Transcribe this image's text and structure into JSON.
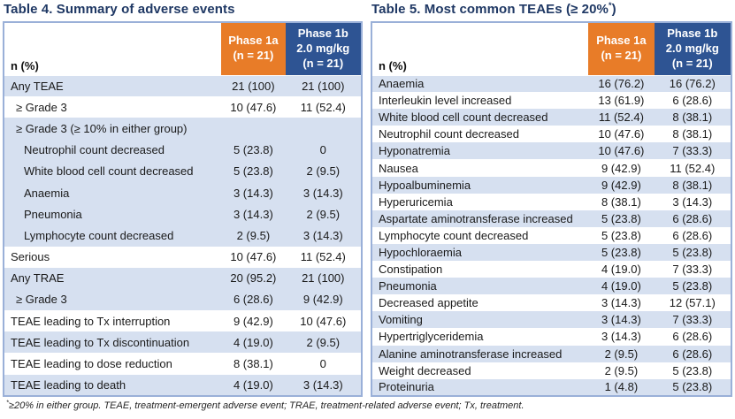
{
  "colors": {
    "accent_orange": "#E87C28",
    "accent_blue": "#2E5493",
    "row_blue": "#D6E0F0",
    "title_navy": "#1F3864",
    "table_border": "#9AB0D8"
  },
  "table4": {
    "title": "Table 4. Summary of adverse events",
    "row_header": "n (%)",
    "columns": [
      {
        "lines": [
          "Phase 1a",
          "(n = 21)"
        ]
      },
      {
        "lines": [
          "Phase 1b",
          "2.0 mg/kg",
          "(n = 21)"
        ]
      }
    ],
    "rows": [
      {
        "label": "Any TEAE",
        "v1": "21 (100)",
        "v2": "21 (100)",
        "bg": "blue",
        "indent": 0
      },
      {
        "label": "≥ Grade 3",
        "v1": "10 (47.6)",
        "v2": "11 (52.4)",
        "bg": "white",
        "indent": 1
      },
      {
        "label": "≥ Grade 3 (≥ 10% in either group)",
        "v1": "",
        "v2": "",
        "bg": "blue",
        "indent": 1
      },
      {
        "label": "Neutrophil count decreased",
        "v1": "5 (23.8)",
        "v2": "0",
        "bg": "blue",
        "indent": 2
      },
      {
        "label": "White blood cell count decreased",
        "v1": "5 (23.8)",
        "v2": "2 (9.5)",
        "bg": "blue",
        "indent": 2
      },
      {
        "label": "Anaemia",
        "v1": "3 (14.3)",
        "v2": "3 (14.3)",
        "bg": "blue",
        "indent": 2
      },
      {
        "label": "Pneumonia",
        "v1": "3 (14.3)",
        "v2": "2 (9.5)",
        "bg": "blue",
        "indent": 2
      },
      {
        "label": "Lymphocyte count decreased",
        "v1": "2 (9.5)",
        "v2": "3 (14.3)",
        "bg": "blue",
        "indent": 2
      },
      {
        "label": "Serious",
        "v1": "10 (47.6)",
        "v2": "11 (52.4)",
        "bg": "white",
        "indent": 0
      },
      {
        "label": "Any TRAE",
        "v1": "20 (95.2)",
        "v2": "21 (100)",
        "bg": "blue",
        "indent": 0
      },
      {
        "label": "≥ Grade 3",
        "v1": "6 (28.6)",
        "v2": "9 (42.9)",
        "bg": "blue",
        "indent": 1
      },
      {
        "label": "TEAE leading to Tx interruption",
        "v1": "9 (42.9)",
        "v2": "10 (47.6)",
        "bg": "white",
        "indent": 0
      },
      {
        "label": "TEAE leading to Tx discontinuation",
        "v1": "4 (19.0)",
        "v2": "2 (9.5)",
        "bg": "blue",
        "indent": 0
      },
      {
        "label": "TEAE leading to dose reduction",
        "v1": "8 (38.1)",
        "v2": "0",
        "bg": "white",
        "indent": 0
      },
      {
        "label": "TEAE leading to death",
        "v1": "4 (19.0)",
        "v2": "3 (14.3)",
        "bg": "blue",
        "indent": 0
      }
    ]
  },
  "table5": {
    "title_prefix": "Table 5. Most common TEAEs (≥ 20%",
    "title_sup": "*",
    "title_suffix": ")",
    "row_header": "n (%)",
    "columns": [
      {
        "lines": [
          "Phase 1a",
          "(n = 21)"
        ]
      },
      {
        "lines": [
          "Phase 1b",
          "2.0 mg/kg",
          "(n = 21)"
        ]
      }
    ],
    "rows": [
      {
        "label": "Anaemia",
        "v1": "16 (76.2)",
        "v2": "16 (76.2)",
        "bg": "blue",
        "indent": 0
      },
      {
        "label": "Interleukin level increased",
        "v1": "13 (61.9)",
        "v2": "6 (28.6)",
        "bg": "white",
        "indent": 0
      },
      {
        "label": "White blood cell count decreased",
        "v1": "11 (52.4)",
        "v2": "8 (38.1)",
        "bg": "blue",
        "indent": 0
      },
      {
        "label": "Neutrophil count decreased",
        "v1": "10 (47.6)",
        "v2": "8 (38.1)",
        "bg": "white",
        "indent": 0
      },
      {
        "label": "Hyponatremia",
        "v1": "10 (47.6)",
        "v2": "7 (33.3)",
        "bg": "blue",
        "indent": 0
      },
      {
        "label": "Nausea",
        "v1": "9 (42.9)",
        "v2": "11 (52.4)",
        "bg": "white",
        "indent": 0
      },
      {
        "label": "Hypoalbuminemia",
        "v1": "9 (42.9)",
        "v2": "8 (38.1)",
        "bg": "blue",
        "indent": 0
      },
      {
        "label": "Hyperuricemia",
        "v1": "8 (38.1)",
        "v2": "3 (14.3)",
        "bg": "white",
        "indent": 0
      },
      {
        "label": "Aspartate aminotransferase increased",
        "v1": "5 (23.8)",
        "v2": "6 (28.6)",
        "bg": "blue",
        "indent": 0
      },
      {
        "label": "Lymphocyte count decreased",
        "v1": "5 (23.8)",
        "v2": "6 (28.6)",
        "bg": "white",
        "indent": 0
      },
      {
        "label": "Hypochloraemia",
        "v1": "5 (23.8)",
        "v2": "5 (23.8)",
        "bg": "blue",
        "indent": 0
      },
      {
        "label": "Constipation",
        "v1": "4 (19.0)",
        "v2": "7 (33.3)",
        "bg": "white",
        "indent": 0
      },
      {
        "label": "Pneumonia",
        "v1": "4 (19.0)",
        "v2": "5 (23.8)",
        "bg": "blue",
        "indent": 0
      },
      {
        "label": "Decreased appetite",
        "v1": "3 (14.3)",
        "v2": "12 (57.1)",
        "bg": "white",
        "indent": 0
      },
      {
        "label": "Vomiting",
        "v1": "3 (14.3)",
        "v2": "7 (33.3)",
        "bg": "blue",
        "indent": 0
      },
      {
        "label": "Hypertriglyceridemia",
        "v1": "3 (14.3)",
        "v2": "6 (28.6)",
        "bg": "white",
        "indent": 0
      },
      {
        "label": "Alanine aminotransferase increased",
        "v1": "2 (9.5)",
        "v2": "6 (28.6)",
        "bg": "blue",
        "indent": 0
      },
      {
        "label": "Weight decreased",
        "v1": "2 (9.5)",
        "v2": "5 (23.8)",
        "bg": "white",
        "indent": 0
      },
      {
        "label": "Proteinuria",
        "v1": "1 (4.8)",
        "v2": "5 (23.8)",
        "bg": "blue",
        "indent": 0
      }
    ]
  },
  "footnote": {
    "sup": "*",
    "text": "≥20% in either group. TEAE, treatment-emergent adverse event; TRAE, treatment-related adverse event; Tx, treatment."
  }
}
